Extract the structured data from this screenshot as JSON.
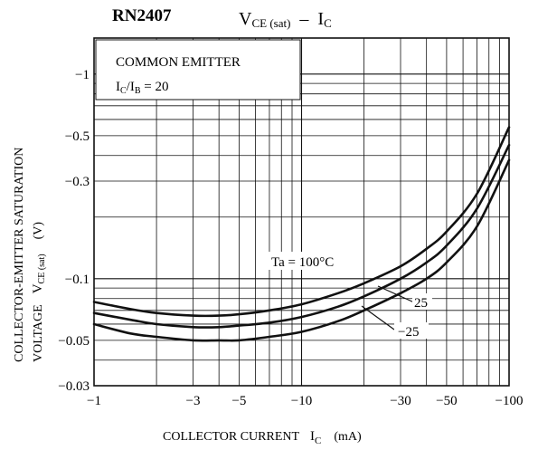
{
  "chart_data": {
    "type": "line",
    "part_number": "RN2407",
    "title": {
      "prefix": "V",
      "prefix_sub": "CE (sat)",
      "dash": "–",
      "suffix": "I",
      "suffix_sub": "C"
    },
    "x_scale": "log",
    "y_scale": "log",
    "xlim": [
      -1,
      -100
    ],
    "ylim": [
      -0.03,
      -1.5
    ],
    "x_ticks": [
      -1,
      -3,
      -5,
      -10,
      -30,
      -50,
      -100
    ],
    "x_tick_labels": [
      "−1",
      "−3",
      "−5",
      "−10",
      "−30",
      "−50",
      "−100"
    ],
    "y_ticks": [
      -0.03,
      -0.05,
      -0.1,
      -0.3,
      -0.5,
      -1
    ],
    "y_tick_labels": [
      "−0.03",
      "−0.05",
      "−0.1",
      "−0.3",
      "−0.5",
      "−1"
    ],
    "xlabel": {
      "text": "COLLECTOR CURRENT",
      "symbol": "I",
      "symbol_sub": "C",
      "unit": "(mA)"
    },
    "ylabel": {
      "line1": "COLLECTOR-EMITTER SATURATION",
      "line2_prefix": "VOLTAGE",
      "symbol": "V",
      "symbol_sub": "CE (sat)",
      "unit": "(V)"
    },
    "grid": true,
    "legend_box": {
      "line1": "COMMON EMITTER",
      "line2_a": "I",
      "line2_a_sub": "C",
      "line2_b": "/I",
      "line2_b_sub": "B",
      "line2_c": " = 20"
    },
    "series": [
      {
        "name": "Ta = 100°C",
        "x": [
          -1,
          -1.5,
          -2,
          -3,
          -4,
          -5,
          -7,
          -10,
          -15,
          -20,
          -30,
          -40,
          -50,
          -70,
          -100
        ],
        "y": [
          -0.077,
          -0.071,
          -0.068,
          -0.066,
          -0.066,
          -0.067,
          -0.07,
          -0.075,
          -0.085,
          -0.095,
          -0.115,
          -0.14,
          -0.17,
          -0.26,
          -0.55
        ]
      },
      {
        "name": "25",
        "x": [
          -1,
          -1.5,
          -2,
          -3,
          -4,
          -5,
          -7,
          -10,
          -15,
          -20,
          -30,
          -40,
          -50,
          -70,
          -100
        ],
        "y": [
          -0.068,
          -0.063,
          -0.06,
          -0.058,
          -0.058,
          -0.059,
          -0.061,
          -0.065,
          -0.073,
          -0.082,
          -0.1,
          -0.12,
          -0.145,
          -0.22,
          -0.45
        ]
      },
      {
        "name": "−25",
        "x": [
          -1,
          -1.5,
          -2,
          -3,
          -4,
          -5,
          -7,
          -10,
          -15,
          -20,
          -30,
          -40,
          -50,
          -70,
          -100
        ],
        "y": [
          -0.06,
          -0.054,
          -0.052,
          -0.05,
          -0.05,
          -0.05,
          -0.052,
          -0.055,
          -0.062,
          -0.07,
          -0.085,
          -0.1,
          -0.12,
          -0.18,
          -0.38
        ]
      }
    ],
    "colors": {
      "line": "#111111",
      "grid": "#111111",
      "background": "#ffffff"
    }
  }
}
